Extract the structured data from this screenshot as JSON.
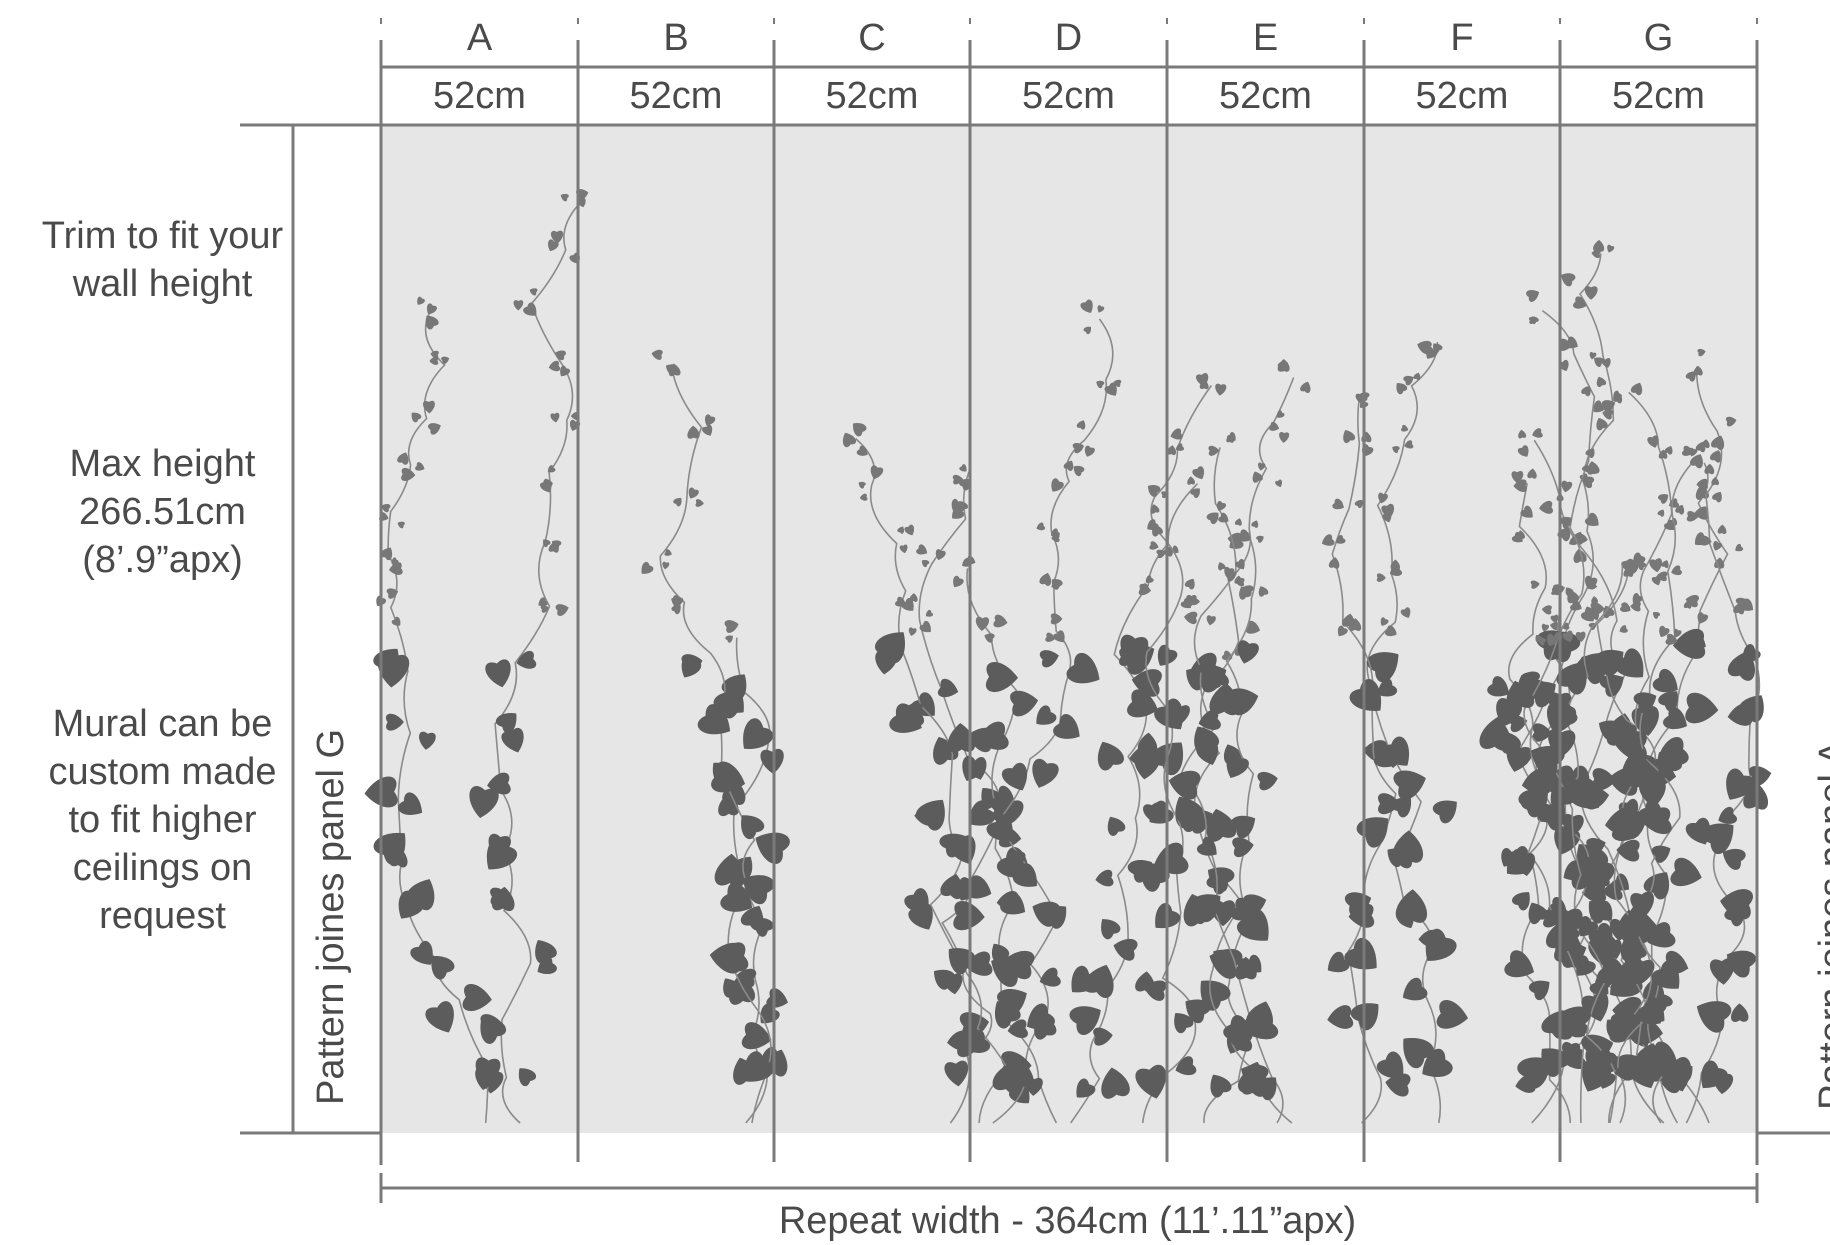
{
  "panels": [
    {
      "letter": "A",
      "width": "52cm"
    },
    {
      "letter": "B",
      "width": "52cm"
    },
    {
      "letter": "C",
      "width": "52cm"
    },
    {
      "letter": "D",
      "width": "52cm"
    },
    {
      "letter": "E",
      "width": "52cm"
    },
    {
      "letter": "F",
      "width": "52cm"
    },
    {
      "letter": "G",
      "width": "52cm"
    }
  ],
  "side_notes": {
    "trim": "Trim to fit your\nwall height",
    "max_height": "Max height\n266.51cm\n(8’.9”apx)",
    "custom": "Mural can be\ncustom made\nto fit higher\nceilings on\nrequest"
  },
  "left_vertical": "Pattern joines panel G",
  "right_vertical": "Pattern joines panel A",
  "repeat_width": "Repeat width - 364cm  (11’.11”apx)",
  "colors": {
    "line": "#7a7a7a",
    "mural_bg": "#e6e6e6",
    "leaf": "#5c5c5c",
    "text": "#4a4a4a"
  }
}
